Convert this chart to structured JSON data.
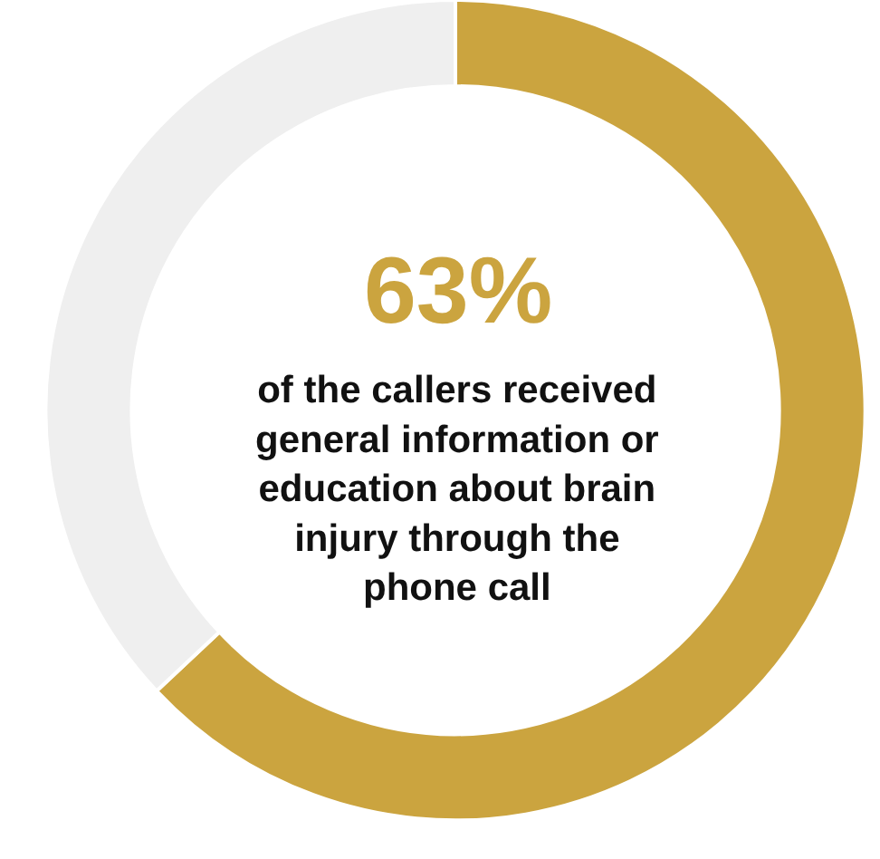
{
  "chart_data": {
    "type": "donut",
    "categories": [
      null,
      null
    ],
    "values": [
      63,
      37
    ],
    "colors": [
      "#cba43f",
      "#efefef"
    ],
    "annotations": [
      "63%",
      "of the callers received general information or education about brain injury through the phone call"
    ],
    "legend": false
  }
}
